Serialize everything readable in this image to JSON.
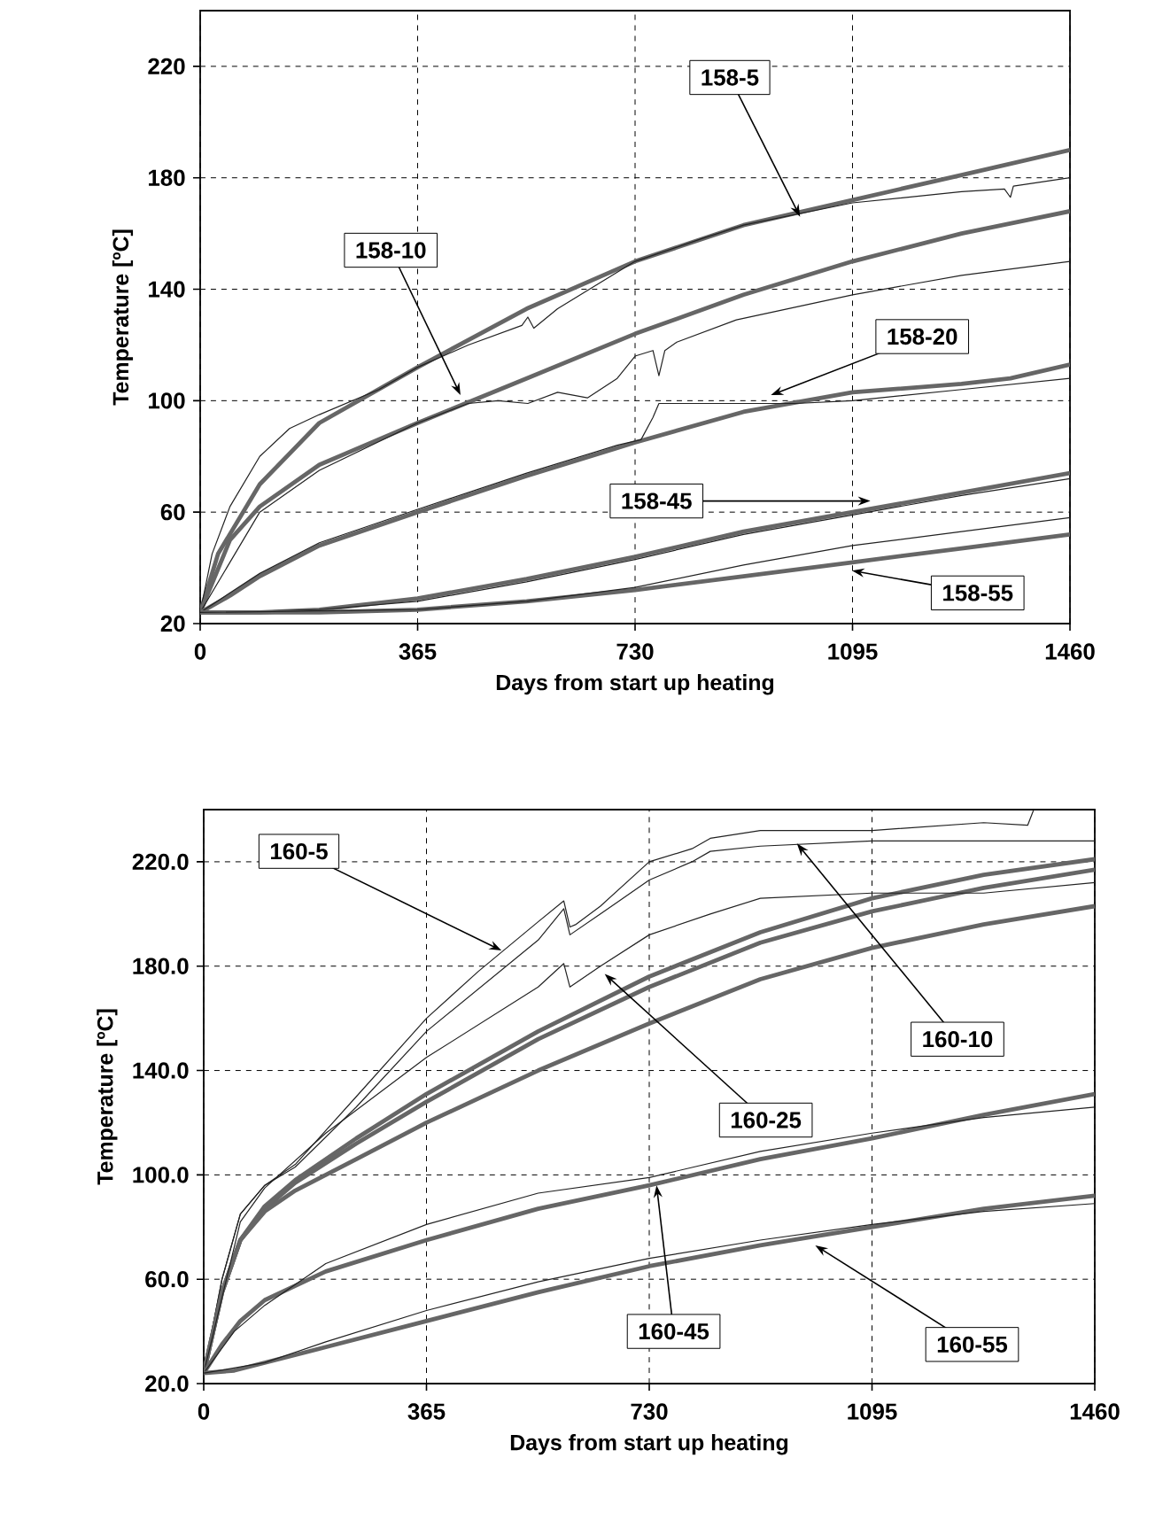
{
  "chart_data": [
    {
      "type": "line",
      "xlabel": "Days from start up heating",
      "ylabel": "Temperature [ºC]",
      "xlim": [
        0,
        1460
      ],
      "ylim": [
        20,
        240
      ],
      "xticks": [
        0,
        365,
        730,
        1095,
        1460
      ],
      "yticks": [
        20,
        60,
        100,
        140,
        180,
        220
      ],
      "grid": true,
      "marker": "none",
      "line_style": "solid",
      "series": [
        {
          "color": "#666666",
          "x": [
            0,
            30,
            100,
            200,
            365,
            548,
            730,
            912,
            1095,
            1278,
            1460
          ],
          "values": [
            24,
            45,
            70,
            92,
            112,
            133,
            150,
            163,
            172,
            181,
            190
          ]
        },
        {
          "color": "#222222",
          "x": [
            0,
            20,
            50,
            100,
            150,
            200,
            300,
            365,
            450,
            540,
            550,
            560,
            600,
            730,
            840,
            912,
            1095,
            1278,
            1350,
            1360,
            1365,
            1460
          ],
          "values": [
            24,
            45,
            62,
            80,
            90,
            95,
            104,
            112,
            120,
            127,
            130,
            126,
            133,
            150,
            158,
            163,
            171,
            175,
            176,
            173,
            177,
            180
          ]
        },
        {
          "color": "#666666",
          "x": [
            0,
            50,
            100,
            200,
            365,
            548,
            730,
            912,
            1095,
            1278,
            1460
          ],
          "values": [
            24,
            50,
            62,
            77,
            92,
            108,
            124,
            138,
            150,
            160,
            168
          ]
        },
        {
          "color": "#222222",
          "x": [
            0,
            100,
            200,
            365,
            450,
            500,
            550,
            600,
            650,
            700,
            730,
            760,
            770,
            780,
            800,
            900,
            1095,
            1278,
            1460
          ],
          "values": [
            24,
            60,
            75,
            92,
            99,
            100,
            99,
            103,
            101,
            108,
            116,
            118,
            109,
            118,
            121,
            129,
            138,
            145,
            150
          ]
        },
        {
          "color": "#666666",
          "x": [
            0,
            50,
            100,
            200,
            365,
            548,
            730,
            912,
            1095,
            1278,
            1360,
            1460
          ],
          "values": [
            24,
            30,
            37,
            48,
            60,
            73,
            85,
            96,
            103,
            106,
            108,
            113
          ]
        },
        {
          "color": "#222222",
          "x": [
            0,
            100,
            200,
            365,
            548,
            700,
            740,
            760,
            770,
            800,
            912,
            1000,
            1095,
            1278,
            1460
          ],
          "values": [
            24,
            38,
            49,
            61,
            74,
            84,
            86,
            94,
            99,
            99,
            99,
            99,
            100,
            104,
            108
          ]
        },
        {
          "color": "#666666",
          "x": [
            0,
            100,
            200,
            365,
            548,
            730,
            912,
            1095,
            1278,
            1460
          ],
          "values": [
            24,
            24,
            25,
            29,
            36,
            44,
            53,
            60,
            67,
            74
          ]
        },
        {
          "color": "#222222",
          "x": [
            0,
            200,
            365,
            548,
            730,
            912,
            1095,
            1278,
            1460
          ],
          "values": [
            24,
            25,
            28,
            35,
            43,
            52,
            59,
            66,
            72
          ]
        },
        {
          "color": "#666666",
          "x": [
            0,
            200,
            365,
            548,
            730,
            912,
            1095,
            1278,
            1460
          ],
          "values": [
            24,
            24,
            25,
            28,
            32,
            37,
            42,
            47,
            52
          ]
        },
        {
          "color": "#222222",
          "x": [
            0,
            365,
            548,
            730,
            912,
            1095,
            1278,
            1460
          ],
          "values": [
            24,
            25,
            28,
            33,
            41,
            48,
            53,
            58
          ]
        }
      ],
      "annotations": [
        {
          "text": "158-5",
          "x": 1007,
          "y": 166
        },
        {
          "text": "158-10",
          "x": 437,
          "y": 102
        },
        {
          "text": "158-20",
          "x": 958,
          "y": 102
        },
        {
          "text": "158-45",
          "x": 1125,
          "y": 64
        },
        {
          "text": "158-55",
          "x": 1094,
          "y": 39
        }
      ]
    },
    {
      "type": "line",
      "xlabel": "Days from start up heating",
      "ylabel": "Temperature [ºC]",
      "xlim": [
        0,
        1460
      ],
      "ylim": [
        20,
        240
      ],
      "xticks": [
        0,
        365,
        730,
        1095,
        1460
      ],
      "yticks": [
        {
          "value": 20,
          "label": "20.0"
        },
        {
          "value": 60,
          "label": "60.0"
        },
        {
          "value": 100,
          "label": "100.0"
        },
        {
          "value": 140,
          "label": "140.0"
        },
        {
          "value": 180,
          "label": "180.0"
        },
        {
          "value": 220,
          "label": "220.0"
        }
      ],
      "grid": true,
      "marker": "none",
      "line_style": "solid",
      "series": [
        {
          "color": "#666666",
          "x": [
            0,
            30,
            60,
            100,
            150,
            250,
            365,
            548,
            730,
            912,
            1095,
            1278,
            1460
          ],
          "values": [
            24,
            55,
            75,
            88,
            98,
            114,
            131,
            155,
            176,
            193,
            206,
            215,
            221
          ]
        },
        {
          "color": "#222222",
          "x": [
            0,
            30,
            60,
            100,
            150,
            250,
            365,
            450,
            548,
            590,
            600,
            610,
            650,
            730,
            800,
            830,
            912,
            1095,
            1278,
            1350,
            1360
          ],
          "values": [
            24,
            60,
            85,
            96,
            104,
            130,
            160,
            178,
            197,
            205,
            195,
            196,
            203,
            220,
            225,
            229,
            232,
            232,
            235,
            234,
            240
          ]
        },
        {
          "color": "#666666",
          "x": [
            0,
            30,
            60,
            100,
            150,
            250,
            365,
            548,
            730,
            912,
            1095,
            1278,
            1460
          ],
          "values": [
            24,
            55,
            75,
            87,
            97,
            112,
            128,
            152,
            172,
            189,
            201,
            210,
            217
          ]
        },
        {
          "color": "#222222",
          "x": [
            0,
            30,
            60,
            100,
            150,
            250,
            365,
            548,
            590,
            600,
            650,
            730,
            800,
            830,
            912,
            1095,
            1278,
            1460
          ],
          "values": [
            24,
            60,
            85,
            96,
            103,
            126,
            155,
            190,
            202,
            192,
            200,
            213,
            220,
            224,
            226,
            228,
            228,
            228
          ]
        },
        {
          "color": "#666666",
          "x": [
            0,
            30,
            60,
            100,
            150,
            250,
            365,
            548,
            730,
            912,
            1095,
            1278,
            1460
          ],
          "values": [
            24,
            55,
            75,
            86,
            94,
            106,
            120,
            140,
            158,
            175,
            187,
            196,
            203
          ]
        },
        {
          "color": "#222222",
          "x": [
            0,
            60,
            100,
            200,
            365,
            548,
            590,
            600,
            650,
            730,
            830,
            912,
            1095,
            1278,
            1460
          ],
          "values": [
            24,
            82,
            95,
            116,
            145,
            172,
            181,
            172,
            180,
            192,
            200,
            206,
            208,
            208,
            212
          ]
        },
        {
          "color": "#666666",
          "x": [
            0,
            30,
            60,
            100,
            200,
            365,
            548,
            730,
            912,
            1095,
            1278,
            1460
          ],
          "values": [
            24,
            35,
            44,
            52,
            63,
            75,
            87,
            96,
            106,
            114,
            123,
            131
          ]
        },
        {
          "color": "#222222",
          "x": [
            0,
            50,
            100,
            200,
            365,
            548,
            730,
            912,
            1095,
            1278,
            1460
          ],
          "values": [
            24,
            40,
            50,
            66,
            81,
            93,
            99,
            109,
            116,
            122,
            126
          ]
        },
        {
          "color": "#666666",
          "x": [
            0,
            50,
            100,
            200,
            365,
            548,
            730,
            912,
            1095,
            1278,
            1460
          ],
          "values": [
            24,
            25,
            28,
            34,
            44,
            55,
            65,
            73,
            80,
            87,
            92
          ]
        },
        {
          "color": "#222222",
          "x": [
            0,
            100,
            200,
            365,
            548,
            730,
            912,
            1095,
            1278,
            1460
          ],
          "values": [
            24,
            28,
            36,
            48,
            59,
            68,
            75,
            81,
            86,
            89
          ]
        }
      ],
      "annotations": [
        {
          "text": "160-5",
          "x": 488,
          "y": 186
        },
        {
          "text": "160-10",
          "x": 972,
          "y": 227
        },
        {
          "text": "160-25",
          "x": 657,
          "y": 177
        },
        {
          "text": "160-45",
          "x": 742,
          "y": 96
        },
        {
          "text": "160-55",
          "x": 1002,
          "y": 73
        }
      ]
    }
  ]
}
